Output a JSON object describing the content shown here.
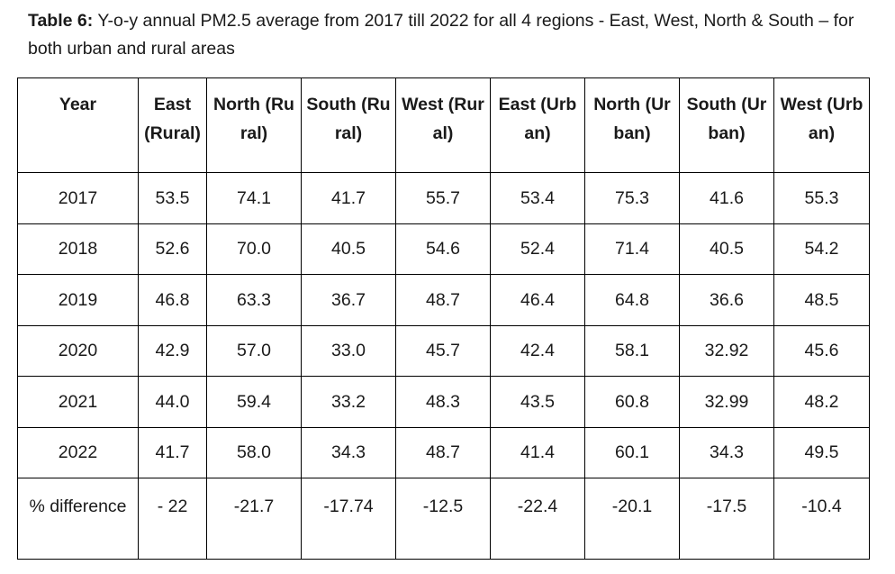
{
  "caption": {
    "label": "Table 6:",
    "text": " Y-o-y annual PM2.5 average from 2017 till 2022 for all 4 regions - East, West, North & South – for both urban and rural areas"
  },
  "table": {
    "headers": [
      "Year",
      "East (Rural)",
      "North (Rural)",
      "South (Rural)",
      "West (Rural)",
      "East (Urban)",
      "North (Urban)",
      "South (Urban)",
      "West (Urban)"
    ],
    "rows": [
      [
        "2017",
        "53.5",
        "74.1",
        "41.7",
        "55.7",
        "53.4",
        "75.3",
        "41.6",
        "55.3"
      ],
      [
        "2018",
        "52.6",
        "70.0",
        "40.5",
        "54.6",
        "52.4",
        "71.4",
        "40.5",
        "54.2"
      ],
      [
        "2019",
        "46.8",
        "63.3",
        "36.7",
        "48.7",
        "46.4",
        "64.8",
        "36.6",
        "48.5"
      ],
      [
        "2020",
        "42.9",
        "57.0",
        "33.0",
        "45.7",
        "42.4",
        "58.1",
        "32.92",
        "45.6"
      ],
      [
        "2021",
        "44.0",
        "59.4",
        "33.2",
        "48.3",
        "43.5",
        "60.8",
        "32.99",
        "48.2"
      ],
      [
        "2022",
        "41.7",
        "58.0",
        "34.3",
        "48.7",
        "41.4",
        "60.1",
        "34.3",
        "49.5"
      ],
      [
        "% difference",
        "- 22",
        "-21.7",
        "-17.74",
        "-12.5",
        "-22.4",
        "-20.1",
        "-17.5",
        "-10.4"
      ]
    ]
  }
}
